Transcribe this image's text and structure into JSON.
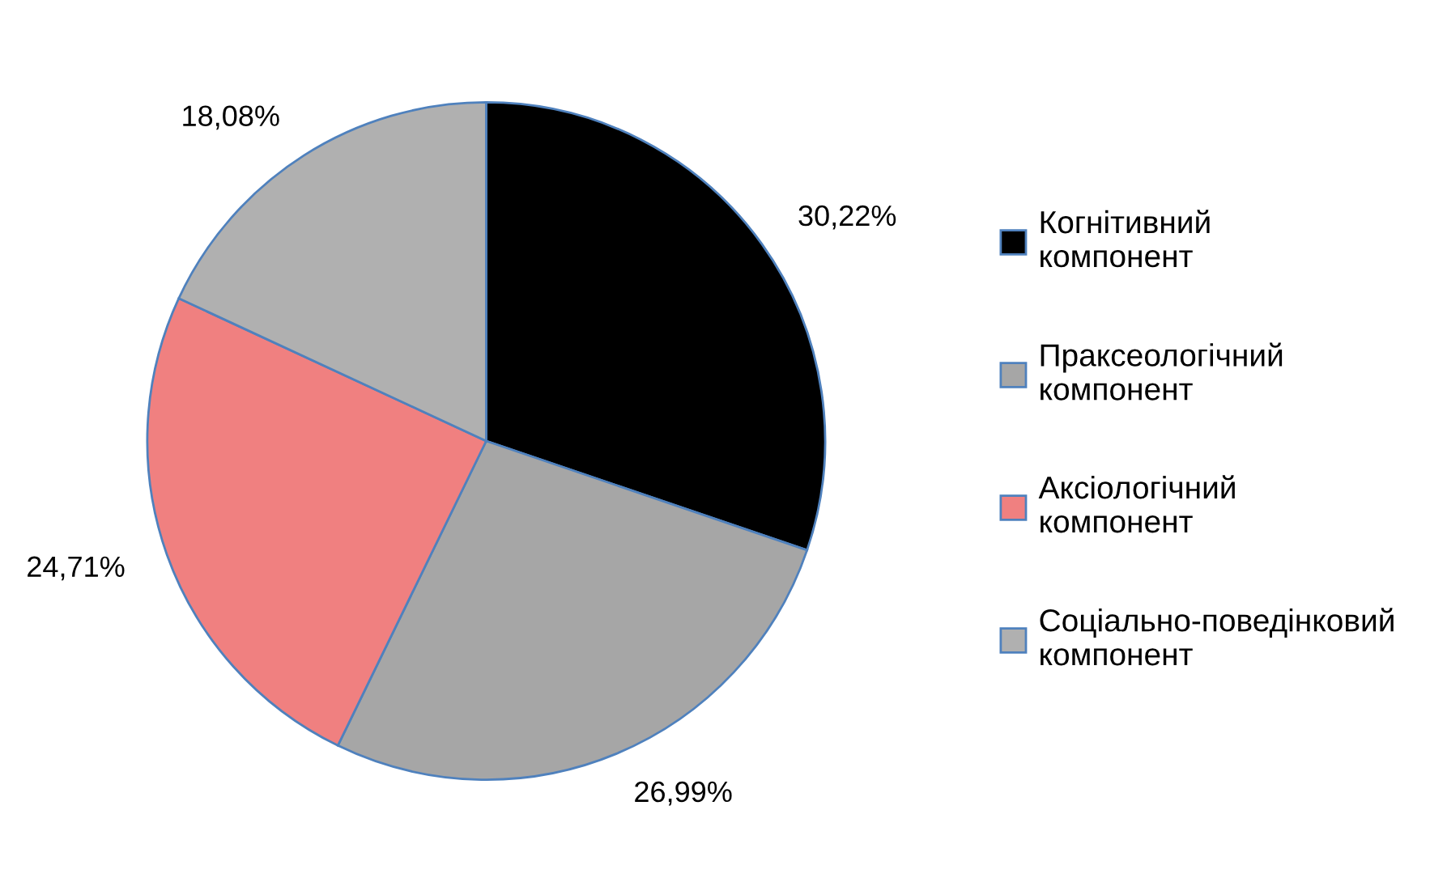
{
  "chart_data": {
    "type": "pie",
    "categories": [
      "Когнітивний компонент",
      "Праксеологічний компонент",
      "Аксіологічний компонент",
      "Соціально-поведінковий компонент"
    ],
    "values": [
      30.22,
      26.99,
      24.71,
      18.08
    ],
    "value_labels": [
      "30,22%",
      "26,99%",
      "24,71%",
      "18,08%"
    ],
    "colors": [
      "#000000",
      "#a6a6a6",
      "#f08080",
      "#b0b0b0"
    ],
    "legend": "right"
  }
}
